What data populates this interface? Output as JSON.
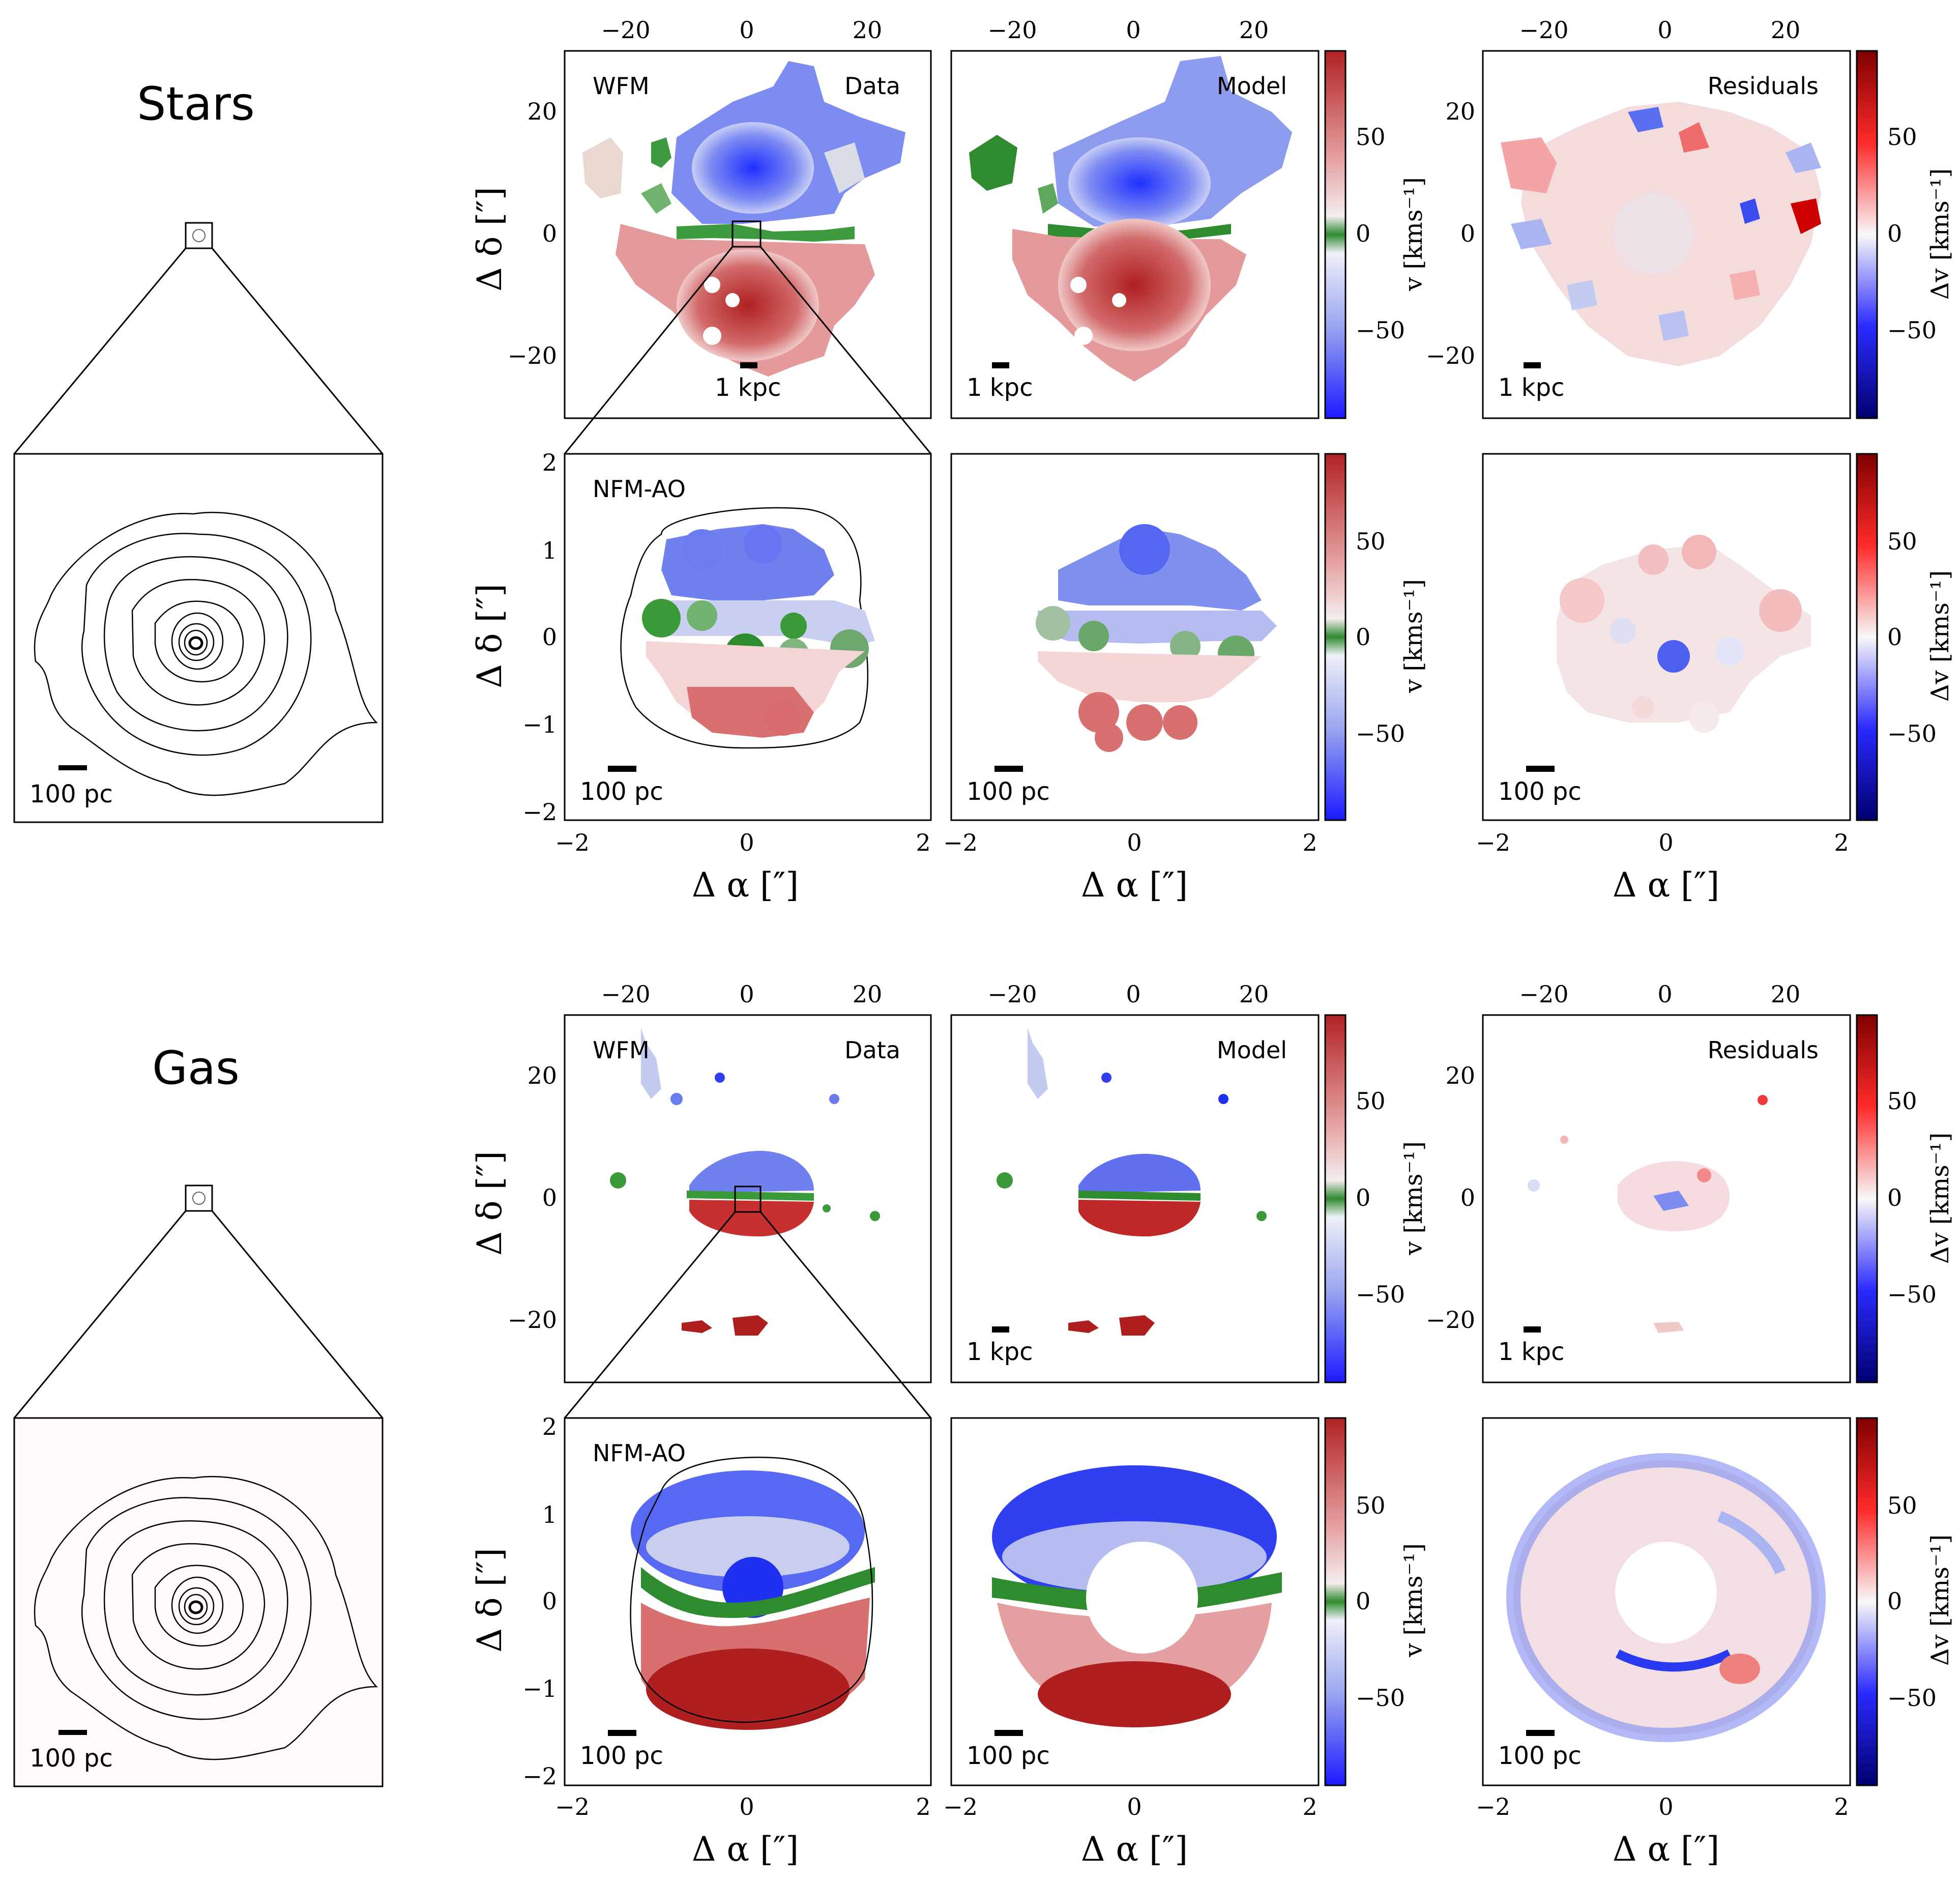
{
  "sections": [
    {
      "id": "stars",
      "title": "Stars",
      "contour_scalebar": "100 pc",
      "wfm_instrument": "WFM",
      "nfm_instrument": "NFM-AO",
      "data_label": "Data",
      "model_label": "Model",
      "residuals_label": "Residuals",
      "wfm_scalebar": "1 kpc",
      "nfm_scalebar": "100 pc"
    },
    {
      "id": "gas",
      "title": "Gas",
      "contour_scalebar": "100 pc",
      "wfm_instrument": "WFM",
      "nfm_instrument": "NFM-AO",
      "data_label": "Data",
      "model_label": "Model",
      "residuals_label": "Residuals",
      "wfm_scalebar": "1 kpc",
      "nfm_scalebar": "100 pc"
    }
  ],
  "axes": {
    "wfm_ticks": [
      "−20",
      "0",
      "20"
    ],
    "nfm_ticks": [
      "−2",
      "−1",
      "0",
      "1",
      "2"
    ],
    "nfm_xticks": [
      "−2",
      "0",
      "2"
    ],
    "ylabel": "Δ δ [″]",
    "xlabel": "Δ α [″]"
  },
  "colorbars": {
    "velocity_label": "v [kms⁻¹]",
    "residual_label": "Δv [kms⁻¹]",
    "ticks": [
      "50",
      "0",
      "−50"
    ],
    "velocity_colors": [
      "#b22222",
      "#e8a0a0",
      "#f5f5f5",
      "#2e8b2e",
      "#f5f5f5",
      "#9aa8f0",
      "#1a1aff"
    ],
    "residual_colors": [
      "#8b0000",
      "#ff2020",
      "#f8f8f8",
      "#2020ff",
      "#000080"
    ]
  }
}
